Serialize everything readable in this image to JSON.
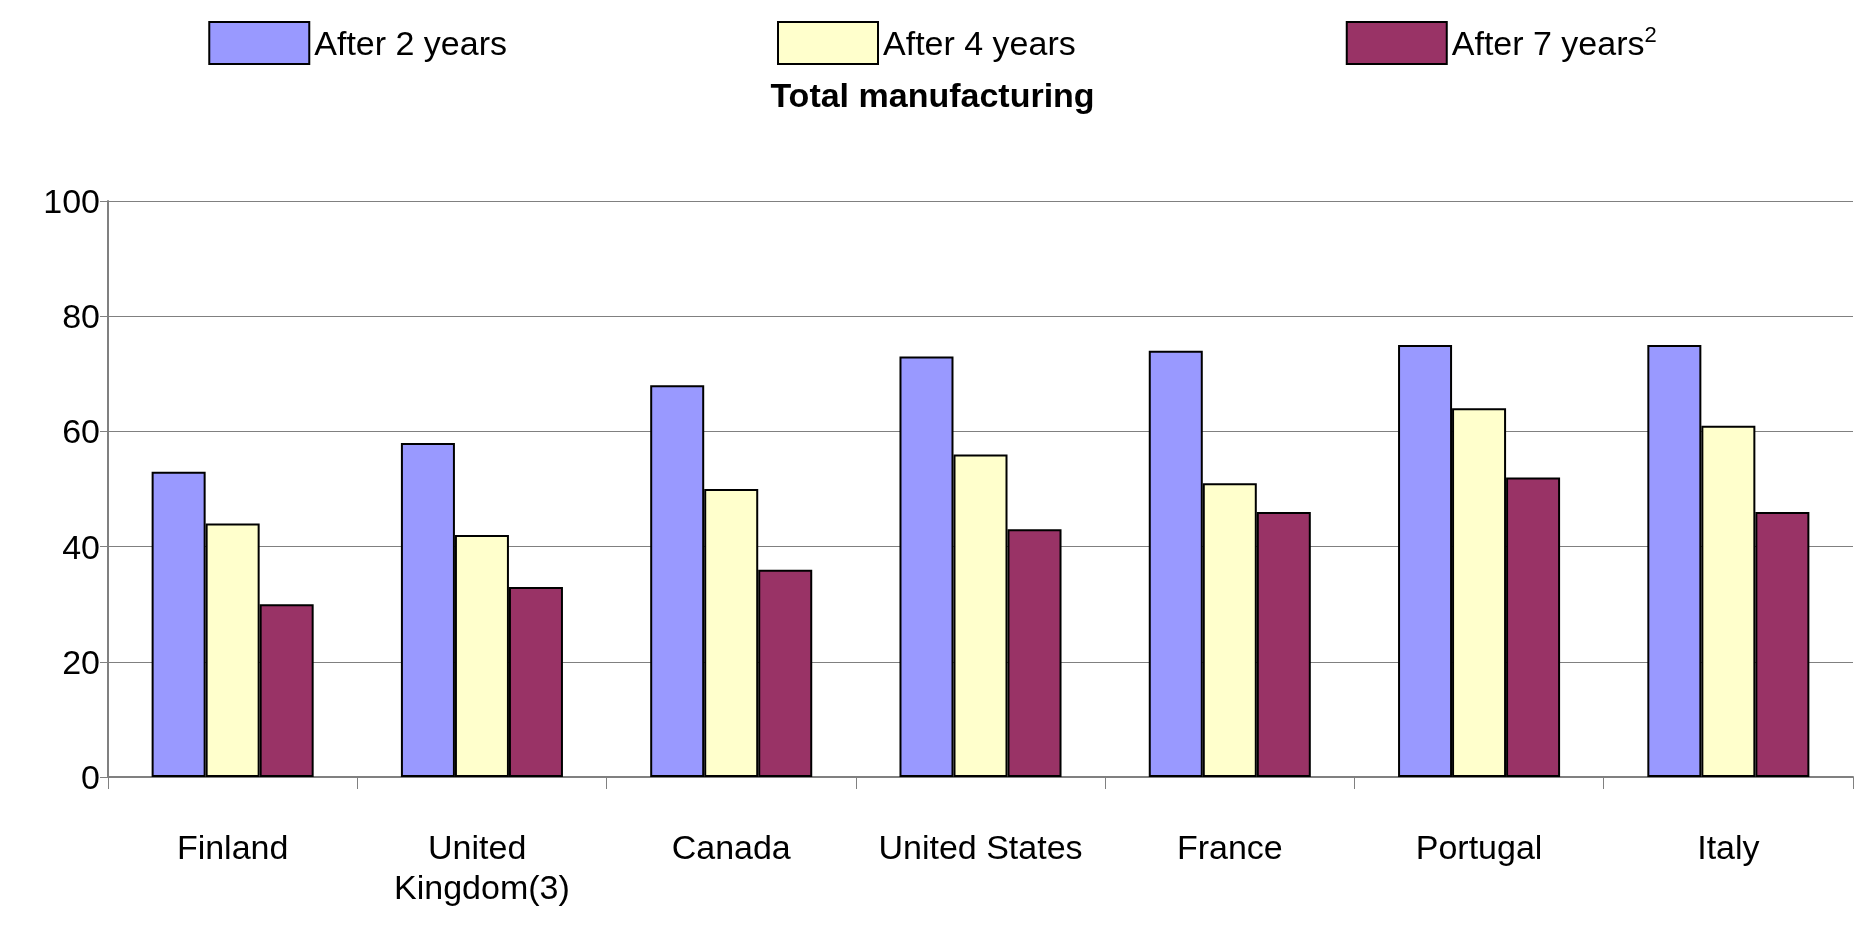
{
  "chart_data": {
    "type": "bar",
    "title": "Total manufacturing",
    "categories": [
      "Finland",
      "United Kingdom(3)",
      "Canada",
      "United States",
      "France",
      "Portugal",
      "Italy"
    ],
    "series": [
      {
        "name": "After 2 years",
        "color": "#9999ff",
        "values": [
          53,
          58,
          68,
          73,
          74,
          75,
          75
        ]
      },
      {
        "name": "After 4 years",
        "color": "#ffffcc",
        "values": [
          44,
          42,
          50,
          56,
          51,
          64,
          61
        ]
      },
      {
        "name": "After 7 years$^{2}$",
        "color": "#993366",
        "values": [
          30,
          33,
          36,
          43,
          46,
          52,
          46
        ]
      }
    ],
    "ylim": [
      0,
      100
    ],
    "yticks": [
      0,
      20,
      40,
      60,
      80,
      100
    ],
    "grid": "y",
    "legend": "top"
  }
}
